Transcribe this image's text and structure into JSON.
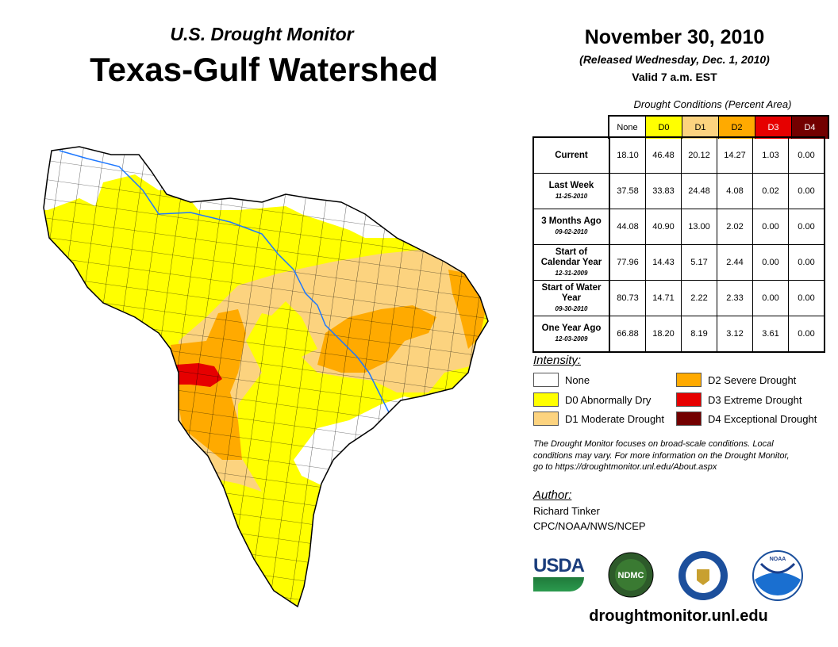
{
  "header": {
    "subtitle": "U.S. Drought Monitor",
    "title": "Texas-Gulf Watershed",
    "date": "November 30, 2010",
    "released": "(Released Wednesday, Dec. 1, 2010)",
    "valid": "Valid 7 a.m. EST"
  },
  "table": {
    "caption": "Drought Conditions (Percent Area)",
    "columns": [
      {
        "label": "None",
        "bg": "#ffffff",
        "fg": "#000000"
      },
      {
        "label": "D0",
        "bg": "#ffff00",
        "fg": "#000000"
      },
      {
        "label": "D1",
        "bg": "#fcd37f",
        "fg": "#000000"
      },
      {
        "label": "D2",
        "bg": "#ffaa00",
        "fg": "#000000"
      },
      {
        "label": "D3",
        "bg": "#e60000",
        "fg": "#ffffff"
      },
      {
        "label": "D4",
        "bg": "#730000",
        "fg": "#ffffff"
      }
    ],
    "rows": [
      {
        "label": "Current",
        "date": "",
        "values": [
          "18.10",
          "46.48",
          "20.12",
          "14.27",
          "1.03",
          "0.00"
        ]
      },
      {
        "label": "Last Week",
        "date": "11-25-2010",
        "values": [
          "37.58",
          "33.83",
          "24.48",
          "4.08",
          "0.02",
          "0.00"
        ]
      },
      {
        "label": "3 Months Ago",
        "date": "09-02-2010",
        "values": [
          "44.08",
          "40.90",
          "13.00",
          "2.02",
          "0.00",
          "0.00"
        ]
      },
      {
        "label": "Start of Calendar Year",
        "date": "12-31-2009",
        "values": [
          "77.96",
          "14.43",
          "5.17",
          "2.44",
          "0.00",
          "0.00"
        ]
      },
      {
        "label": "Start of Water Year",
        "date": "09-30-2010",
        "values": [
          "80.73",
          "14.71",
          "2.22",
          "2.33",
          "0.00",
          "0.00"
        ]
      },
      {
        "label": "One Year Ago",
        "date": "12-03-2009",
        "values": [
          "66.88",
          "18.20",
          "8.19",
          "3.12",
          "3.61",
          "0.00"
        ]
      }
    ]
  },
  "legend": {
    "title": "Intensity:",
    "items": [
      {
        "label": "None",
        "color": "#ffffff"
      },
      {
        "label": "D0 Abnormally Dry",
        "color": "#ffff00"
      },
      {
        "label": "D1 Moderate Drought",
        "color": "#fcd37f"
      },
      {
        "label": "D2 Severe Drought",
        "color": "#ffaa00"
      },
      {
        "label": "D3 Extreme Drought",
        "color": "#e60000"
      },
      {
        "label": "D4 Exceptional Drought",
        "color": "#730000"
      }
    ]
  },
  "note": "The Drought Monitor focuses on broad-scale conditions. Local conditions may vary. For more information on the Drought Monitor, go to https://droughtmonitor.unl.edu/About.aspx",
  "author": {
    "title": "Author:",
    "name": "Richard Tinker",
    "org": "CPC/NOAA/NWS/NCEP"
  },
  "logos": {
    "usda": "USDA",
    "ndmc": "NDMC",
    "noaa": "NOAA"
  },
  "footer": {
    "url": "droughtmonitor.unl.edu"
  }
}
